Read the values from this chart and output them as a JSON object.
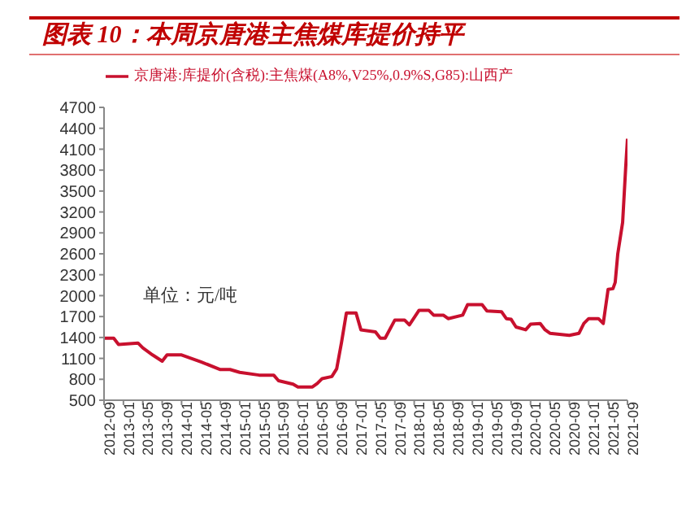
{
  "chart_data": {
    "type": "line",
    "title": "图表 10：本周京唐港主焦煤库提价持平",
    "annotations": [
      "单位：元/吨"
    ],
    "legend": "top",
    "grid": false,
    "marker": "none",
    "line_style": "solid",
    "x": [
      "2012-09",
      "2012-11",
      "2012-12",
      "2013-04",
      "2013-05",
      "2013-07",
      "2013-09",
      "2013-10",
      "2014-01",
      "2014-03",
      "2014-05",
      "2014-09",
      "2014-11",
      "2015-01",
      "2015-05",
      "2015-08",
      "2015-09",
      "2015-12",
      "2016-01",
      "2016-04",
      "2016-05",
      "2016-06",
      "2016-08",
      "2016-09",
      "2016-10",
      "2016-11",
      "2017-01",
      "2017-02",
      "2017-05",
      "2017-06",
      "2017-07",
      "2017-09",
      "2017-11",
      "2017-12",
      "2018-02",
      "2018-04",
      "2018-05",
      "2018-07",
      "2018-08",
      "2018-11",
      "2018-12",
      "2019-03",
      "2019-04",
      "2019-07",
      "2019-08",
      "2019-09",
      "2019-10",
      "2019-12",
      "2020-01",
      "2020-03",
      "2020-04",
      "2020-05",
      "2020-09",
      "2020-11",
      "2020-12",
      "2021-01",
      "2021-03",
      "2021-04",
      "2021-05",
      "2021-06",
      "2021-06-15",
      "2021-07",
      "2021-08",
      "2021-08-20",
      "2021-09"
    ],
    "series": [
      {
        "name": "京唐港:库提价(含税):主焦煤(A8%,V25%,0.9%S,G85):山西产",
        "color": "#c8102e",
        "values": [
          1390,
          1390,
          1300,
          1320,
          1250,
          1150,
          1060,
          1150,
          1150,
          1100,
          1050,
          940,
          940,
          900,
          860,
          860,
          780,
          730,
          690,
          690,
          740,
          810,
          840,
          950,
          1330,
          1750,
          1750,
          1510,
          1480,
          1390,
          1390,
          1650,
          1650,
          1580,
          1790,
          1790,
          1720,
          1720,
          1670,
          1720,
          1870,
          1870,
          1780,
          1770,
          1670,
          1660,
          1550,
          1510,
          1590,
          1600,
          1510,
          1460,
          1430,
          1460,
          1600,
          1670,
          1670,
          1600,
          2090,
          2100,
          2190,
          2600,
          3050,
          3840,
          4250
        ]
      }
    ],
    "xlim": [
      "2012-09",
      "2021-09"
    ],
    "xticks": [
      "2012-09",
      "2013-01",
      "2013-05",
      "2013-09",
      "2014-01",
      "2014-05",
      "2014-09",
      "2015-01",
      "2015-05",
      "2015-09",
      "2016-01",
      "2016-05",
      "2016-09",
      "2017-01",
      "2017-05",
      "2017-09",
      "2018-01",
      "2018-05",
      "2018-09",
      "2019-01",
      "2019-05",
      "2019-09",
      "2020-01",
      "2020-05",
      "2020-09",
      "2021-01",
      "2021-05",
      "2021-09"
    ],
    "ylim": [
      500,
      4700
    ],
    "yticks": [
      500,
      800,
      1100,
      1400,
      1700,
      2000,
      2300,
      2600,
      2900,
      3200,
      3500,
      3800,
      4100,
      4400,
      4700
    ]
  }
}
